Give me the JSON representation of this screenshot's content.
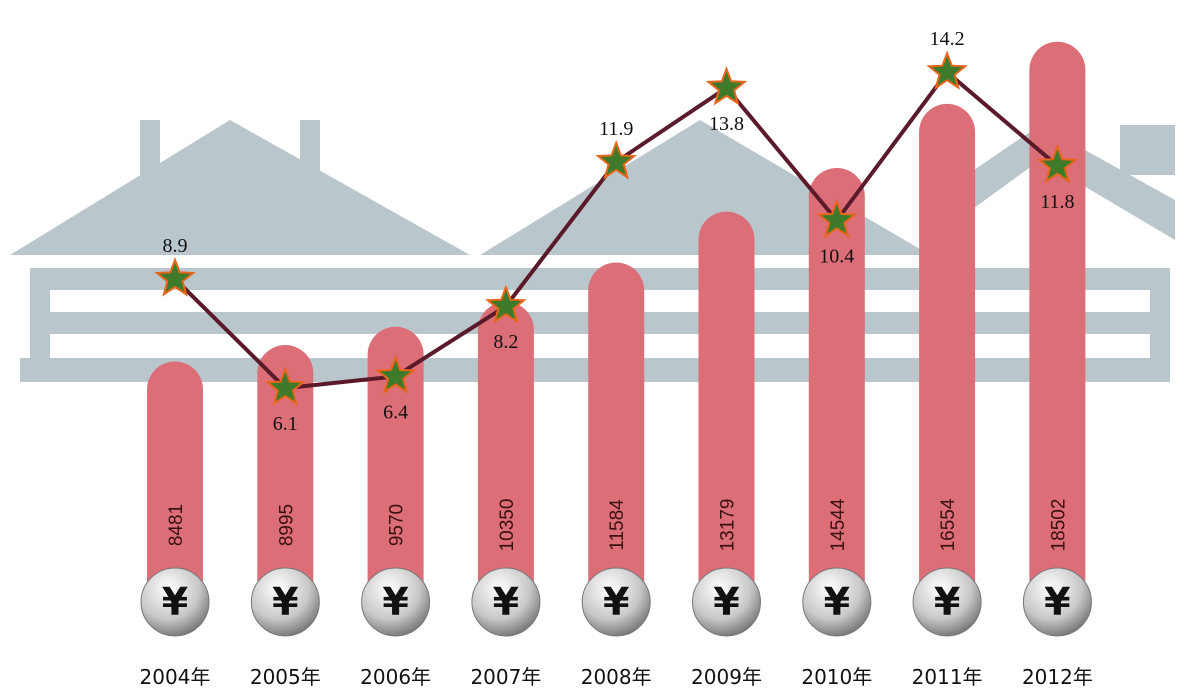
{
  "chart_data": {
    "type": "bar",
    "categories": [
      "2004年",
      "2005年",
      "2006年",
      "2007年",
      "2008年",
      "2009年",
      "2010年",
      "2011年",
      "2012年"
    ],
    "coin_symbol": "¥",
    "ylim": [
      0,
      20000
    ],
    "y2lim": [
      0,
      16
    ],
    "series": [
      {
        "type": "bar",
        "color": "#dc6e78",
        "values": [
          8481,
          8995,
          9570,
          10350,
          11584,
          13179,
          14544,
          16554,
          18502
        ]
      },
      {
        "type": "line",
        "axis": "y2",
        "color": "#5a1a2a",
        "marker_color": "#3e7a2a",
        "values": [
          8.9,
          6.1,
          6.4,
          8.2,
          11.9,
          13.8,
          10.4,
          14.2,
          11.8
        ]
      }
    ]
  }
}
